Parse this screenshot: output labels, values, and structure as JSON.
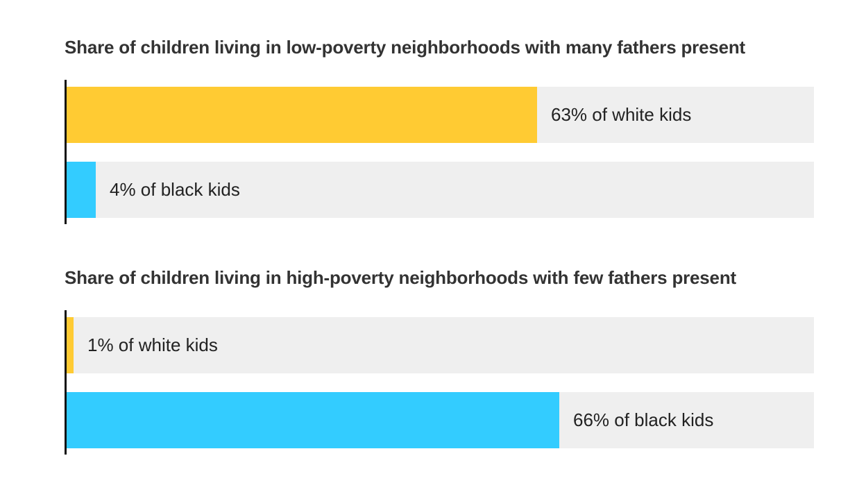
{
  "colors": {
    "white_kids": "#ffcb33",
    "black_kids": "#33ccff",
    "track": "#efefef",
    "axis": "#111111"
  },
  "chart_data": [
    {
      "type": "bar",
      "orientation": "horizontal",
      "title": "Share of children living in low-poverty neighborhoods with many fathers present",
      "xlim": [
        0,
        100
      ],
      "unit": "%",
      "bars": [
        {
          "value": 63,
          "label": "63% of white kids",
          "color": "#ffcb33"
        },
        {
          "value": 4,
          "label": "4% of black kids",
          "color": "#33ccff"
        }
      ]
    },
    {
      "type": "bar",
      "orientation": "horizontal",
      "title": "Share of children living in high-poverty neighborhoods with few fathers present",
      "xlim": [
        0,
        100
      ],
      "unit": "%",
      "bars": [
        {
          "value": 1,
          "label": "1% of white kids",
          "color": "#ffcb33"
        },
        {
          "value": 66,
          "label": "66% of black kids",
          "color": "#33ccff"
        }
      ]
    }
  ]
}
